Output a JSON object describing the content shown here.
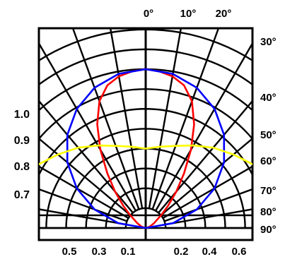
{
  "chart_data": {
    "type": "polar-intensity",
    "title": "",
    "angle_labels": [
      {
        "key": "0",
        "text": "0°",
        "angle": 0
      },
      {
        "key": "10",
        "text": "10°",
        "angle": 10
      },
      {
        "key": "20",
        "text": "20°",
        "angle": 20
      },
      {
        "key": "30",
        "text": "30°",
        "angle": 30
      },
      {
        "key": "40",
        "text": "40°",
        "angle": 40
      },
      {
        "key": "50",
        "text": "50°",
        "angle": 50
      },
      {
        "key": "60",
        "text": "60°",
        "angle": 60
      },
      {
        "key": "70",
        "text": "70°",
        "angle": 70
      },
      {
        "key": "80",
        "text": "80°",
        "angle": 80
      },
      {
        "key": "90",
        "text": "90°",
        "angle": 90
      }
    ],
    "radial_labels_left": [
      "1.0",
      "0.9",
      "0.8",
      "0.7"
    ],
    "bottom_labels_left": [
      "0.5",
      "0.3",
      "0.1"
    ],
    "bottom_labels_right": [
      "0.2",
      "0.4",
      "0.6"
    ],
    "series": [
      {
        "color": "#ff0000",
        "points": [
          [
            0,
            1.0
          ],
          [
            5,
            0.99
          ],
          [
            10,
            0.97
          ],
          [
            15,
            0.93
          ],
          [
            20,
            0.85
          ],
          [
            25,
            0.72
          ],
          [
            30,
            0.57
          ],
          [
            35,
            0.42
          ],
          [
            40,
            0.3
          ],
          [
            45,
            0.2
          ],
          [
            50,
            0.13
          ],
          [
            60,
            0.06
          ],
          [
            70,
            0.03
          ],
          [
            80,
            0.01
          ],
          [
            90,
            0
          ]
        ]
      },
      {
        "color": "#0000ff",
        "points": [
          [
            0,
            1.0
          ],
          [
            10,
            0.985
          ],
          [
            20,
            0.94
          ],
          [
            30,
            0.866
          ],
          [
            40,
            0.766
          ],
          [
            50,
            0.643
          ],
          [
            60,
            0.5
          ],
          [
            70,
            0.342
          ],
          [
            80,
            0.174
          ],
          [
            90,
            0
          ]
        ]
      },
      {
        "color": "#ffff00",
        "points": [
          [
            0,
            0.5
          ],
          [
            10,
            0.52
          ],
          [
            20,
            0.55
          ],
          [
            30,
            0.6
          ],
          [
            40,
            0.66
          ],
          [
            50,
            0.72
          ],
          [
            60,
            0.79
          ],
          [
            70,
            0.86
          ],
          [
            75,
            0.9
          ],
          [
            80,
            0.92
          ],
          [
            85,
            0.93
          ],
          [
            90,
            0.93
          ]
        ]
      }
    ]
  }
}
